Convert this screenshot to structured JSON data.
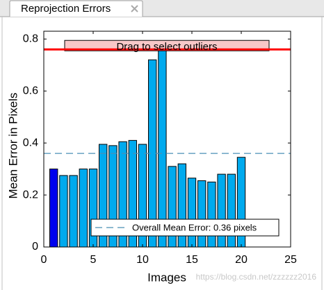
{
  "tab": {
    "title": "Reprojection Errors"
  },
  "chart_data": {
    "type": "bar",
    "x_label": "Images",
    "y_label": "Mean Error in Pixels",
    "categories": [
      1,
      2,
      3,
      4,
      5,
      6,
      7,
      8,
      9,
      10,
      11,
      12,
      13,
      14,
      15,
      16,
      17,
      18,
      19,
      20
    ],
    "values": [
      0.3,
      0.275,
      0.275,
      0.3,
      0.3,
      0.395,
      0.39,
      0.405,
      0.41,
      0.395,
      0.72,
      0.76,
      0.31,
      0.32,
      0.265,
      0.255,
      0.25,
      0.28,
      0.28,
      0.345
    ],
    "colors": [
      "#0000ee",
      "#00aaee",
      "#00aaee",
      "#00aaee",
      "#00aaee",
      "#00aaee",
      "#00aaee",
      "#00aaee",
      "#00aaee",
      "#00aaee",
      "#00aaee",
      "#00aaee",
      "#00aaee",
      "#00aaee",
      "#00aaee",
      "#00aaee",
      "#00aaee",
      "#00aaee",
      "#00aaee",
      "#00aaee"
    ],
    "xlim": [
      0,
      25
    ],
    "xticks": [
      0,
      5,
      10,
      15,
      20,
      25
    ],
    "ylim": [
      0,
      0.83
    ],
    "yticks": [
      0,
      0.2,
      0.4,
      0.6,
      0.8
    ],
    "mean_line": {
      "value": 0.36,
      "label": "Overall Mean Error: 0.36 pixels",
      "color": "#4a8fb5"
    },
    "threshold": {
      "value": 0.76,
      "label": "Drag to select outliers",
      "color": "#ff0000"
    }
  },
  "watermark": "https://blog.csdn.net/zzzzzz2016"
}
